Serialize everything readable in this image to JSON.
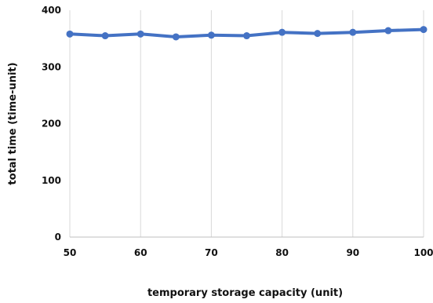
{
  "chart_data": {
    "type": "line",
    "xlabel": "temporary storage capacity (unit)",
    "ylabel": "total time (time-unit)",
    "xlim": [
      50,
      100
    ],
    "ylim": [
      0,
      400
    ],
    "x_ticks": [
      50,
      60,
      70,
      80,
      90,
      100
    ],
    "y_ticks": [
      0,
      100,
      200,
      300,
      400
    ],
    "grid": {
      "vertical": true,
      "horizontal": false
    },
    "legend": "none",
    "series": [
      {
        "x": [
          50,
          55,
          60,
          65,
          70,
          75,
          80,
          85,
          90,
          95,
          100
        ],
        "y": [
          358,
          355,
          358,
          353,
          356,
          355,
          361,
          359,
          361,
          364,
          366
        ],
        "color": "#4472c4"
      }
    ]
  }
}
